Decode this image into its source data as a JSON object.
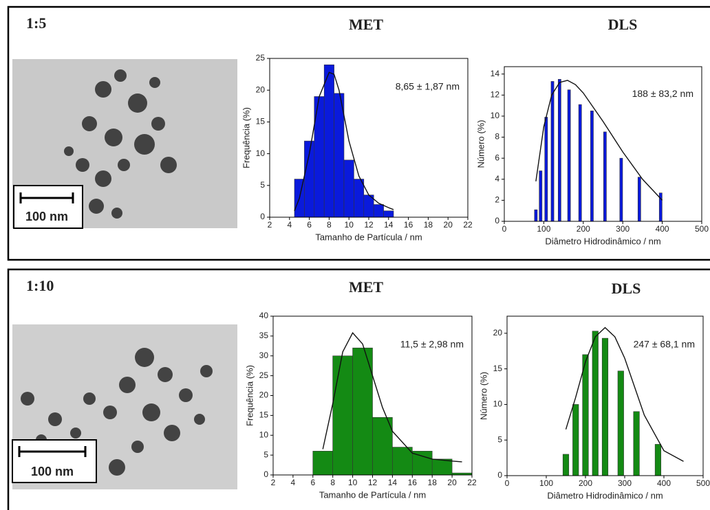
{
  "panels": [
    {
      "ratio": "1:5",
      "met_title": "MET",
      "dls_title": "DLS",
      "scale_label": "100 nm"
    },
    {
      "ratio": "1:10",
      "met_title": "MET",
      "dls_title": "DLS",
      "scale_label": "100 nm"
    }
  ],
  "chart_data": [
    {
      "type": "histogram",
      "color": "#0a1adc",
      "annotation": "8,65 ± 1,87 nm",
      "x_label": "Tamanho de Partícula / nm",
      "y_label": "Frequência (%)",
      "bins": [
        4.5,
        5.5,
        6.5,
        7.5,
        8.5,
        9.5,
        10.5,
        11.5,
        12.5,
        13.5,
        14.5
      ],
      "values": [
        6,
        12,
        19,
        24,
        19.5,
        9,
        6,
        3.5,
        2,
        1
      ],
      "fit": {
        "x": [
          4.5,
          5,
          6,
          7,
          8,
          8.5,
          9,
          10,
          11,
          12,
          13,
          14,
          14.5
        ],
        "y": [
          1,
          3,
          10,
          19,
          22.8,
          22.5,
          20,
          12,
          6.5,
          3.5,
          2.2,
          1.5,
          1.2
        ]
      },
      "xlim": [
        2,
        22
      ],
      "xticks": [
        2,
        4,
        6,
        8,
        10,
        12,
        14,
        16,
        18,
        20,
        22
      ],
      "ylim": [
        0,
        25
      ],
      "yticks": [
        0,
        5,
        10,
        15,
        20,
        25
      ]
    },
    {
      "type": "bar",
      "color": "#0a1adc",
      "annotation": "188 ± 83,2 nm",
      "x_label": "Diâmetro Hidrodinâmico / nm",
      "y_label": "Número (%)",
      "x": [
        80,
        92,
        106,
        122,
        140,
        164,
        192,
        222,
        255,
        296,
        342,
        396
      ],
      "values": [
        1.1,
        4.8,
        9.9,
        13.3,
        13.5,
        12.5,
        11.1,
        10.5,
        8.5,
        6,
        4.2,
        2.7
      ],
      "fit": {
        "x": [
          80,
          100,
          120,
          140,
          160,
          180,
          200,
          250,
          300,
          350,
          400
        ],
        "y": [
          3.8,
          9,
          12,
          13.2,
          13.4,
          13,
          12.2,
          9.5,
          6.6,
          4,
          2
        ]
      },
      "xlim": [
        0,
        500
      ],
      "xticks": [
        0,
        100,
        200,
        300,
        400,
        500
      ],
      "ylim": [
        0,
        14.7
      ],
      "yticks": [
        0,
        2,
        4,
        6,
        8,
        10,
        12,
        14
      ]
    },
    {
      "type": "histogram",
      "color": "#148a14",
      "annotation": "11,5 ± 2,98 nm",
      "x_label": "Tamanho de Partícula / nm",
      "y_label": "Frequência (%)",
      "bins": [
        6,
        8,
        10,
        12,
        14,
        16,
        18,
        20,
        22
      ],
      "values": [
        6,
        30,
        32,
        14.5,
        7,
        6,
        4,
        0.5
      ],
      "fit": {
        "x": [
          7,
          8,
          9,
          10,
          11,
          12,
          13,
          14,
          16,
          18,
          20,
          21
        ],
        "y": [
          6.5,
          18,
          31,
          35.8,
          33,
          25,
          17,
          11,
          5.5,
          4,
          3.5,
          3.3
        ]
      },
      "xlim": [
        2,
        22
      ],
      "xticks": [
        2,
        4,
        6,
        8,
        10,
        12,
        14,
        16,
        18,
        20,
        22
      ],
      "ylim": [
        0,
        40
      ],
      "yticks": [
        0,
        5,
        10,
        15,
        20,
        25,
        30,
        35,
        40
      ]
    },
    {
      "type": "bar",
      "color": "#148a14",
      "annotation": "247 ± 68,1 nm",
      "x_label": "Diâmetro Hidrodinâmico / nm",
      "y_label": "Número (%)",
      "x": [
        150,
        175,
        200,
        225,
        250,
        290,
        330,
        385
      ],
      "values": [
        3,
        10,
        17,
        20.3,
        19.3,
        14.7,
        9,
        4.4
      ],
      "fit": {
        "x": [
          150,
          175,
          200,
          225,
          250,
          275,
          300,
          350,
          400,
          450
        ],
        "y": [
          6.5,
          11,
          16,
          19.5,
          20.8,
          19.5,
          16.5,
          8.5,
          3.5,
          2
        ]
      },
      "xlim": [
        0,
        500
      ],
      "xticks": [
        0,
        100,
        200,
        300,
        400,
        500
      ],
      "ylim": [
        0,
        22.4
      ],
      "yticks": [
        0,
        5,
        10,
        15,
        20
      ]
    }
  ]
}
